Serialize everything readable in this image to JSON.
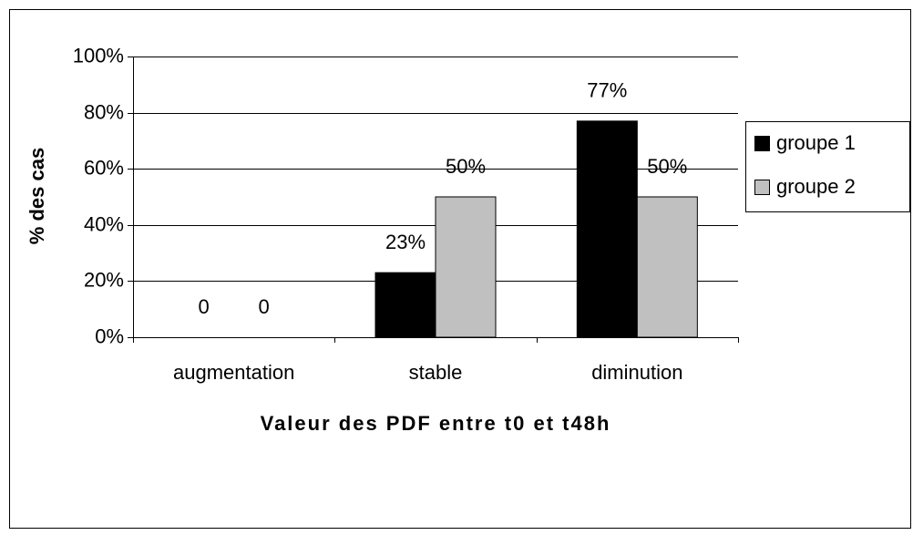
{
  "chart_data": {
    "type": "bar",
    "categories": [
      "augmentation",
      "stable",
      "diminution"
    ],
    "series": [
      {
        "name": "groupe 1",
        "color": "#000000",
        "values": [
          0,
          23,
          77
        ],
        "value_labels": [
          "0",
          "23%",
          "77%"
        ]
      },
      {
        "name": "groupe 2",
        "color": "#c0c0c0",
        "values": [
          0,
          50,
          50
        ],
        "value_labels": [
          "0",
          "50%",
          "50%"
        ]
      }
    ],
    "ylabel": "% des cas",
    "xlabel": "Valeur des PDF entre t0 et t48h",
    "ylim": [
      0,
      100
    ],
    "yticks": [
      {
        "value": 0,
        "label": "0%"
      },
      {
        "value": 20,
        "label": "20%"
      },
      {
        "value": 40,
        "label": "40%"
      },
      {
        "value": 60,
        "label": "60%"
      },
      {
        "value": 80,
        "label": "80%"
      },
      {
        "value": 100,
        "label": "100%"
      }
    ],
    "grid": true,
    "legend": "right"
  }
}
